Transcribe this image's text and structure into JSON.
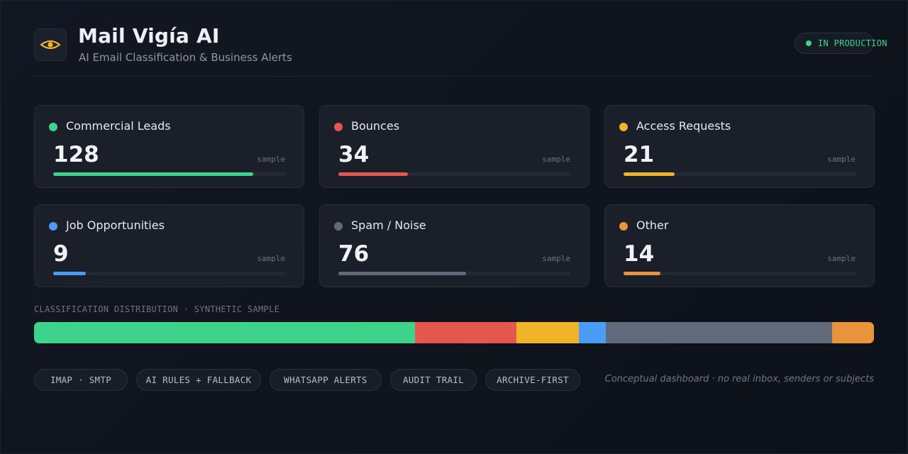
{
  "header": {
    "title": "Mail Vigía AI",
    "subtitle": "AI Email Classification & Business Alerts",
    "logo_icon": "eye-icon",
    "status": "IN PRODUCTION"
  },
  "colors": {
    "commercial": "#3ed38a",
    "bounces": "#e5564f",
    "access": "#f0b429",
    "jobs": "#4b9cf5",
    "spam": "#616a7b",
    "other": "#e8943a"
  },
  "cards": [
    {
      "label": "Commercial Leads",
      "value": "128",
      "tag": "sample",
      "color": "#3ed38a",
      "fill": 0.86
    },
    {
      "label": "Bounces",
      "value": "34",
      "tag": "sample",
      "color": "#e5564f",
      "fill": 0.3
    },
    {
      "label": "Access Requests",
      "value": "21",
      "tag": "sample",
      "color": "#f0b429",
      "fill": 0.22
    },
    {
      "label": "Job Opportunities",
      "value": "9",
      "tag": "sample",
      "color": "#4b9cf5",
      "fill": 0.14
    },
    {
      "label": "Spam / Noise",
      "value": "76",
      "tag": "sample",
      "color": "#616a7b",
      "fill": 0.55
    },
    {
      "label": "Other",
      "value": "14",
      "tag": "sample",
      "color": "#e8943a",
      "fill": 0.16
    }
  ],
  "distribution": {
    "label": "CLASSIFICATION DISTRIBUTION · SYNTHETIC SAMPLE",
    "segments": [
      {
        "category": "Commercial Leads",
        "value": 128,
        "color": "#3ed38a"
      },
      {
        "category": "Bounces",
        "value": 34,
        "color": "#e5564f"
      },
      {
        "category": "Access Requests",
        "value": 21,
        "color": "#f0b429"
      },
      {
        "category": "Job Opportunities",
        "value": 9,
        "color": "#4b9cf5"
      },
      {
        "category": "Spam / Noise",
        "value": 76,
        "color": "#616a7b"
      },
      {
        "category": "Other",
        "value": 14,
        "color": "#e8943a"
      }
    ]
  },
  "chips": [
    "IMAP · SMTP",
    "AI RULES + FALLBACK",
    "WHATSAPP ALERTS",
    "AUDIT TRAIL",
    "ARCHIVE-FIRST"
  ],
  "note": "Conceptual dashboard · no real inbox, senders or subjects"
}
